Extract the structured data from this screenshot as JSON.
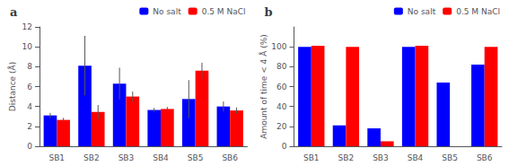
{
  "chart_data": [
    {
      "type": "bar",
      "title": "a",
      "categories": [
        "SB1",
        "SB2",
        "SB3",
        "SB4",
        "SB5",
        "SB6"
      ],
      "series": [
        {
          "name": "No salt",
          "color": "#0000FF",
          "values": [
            3.1,
            8.1,
            6.3,
            3.65,
            4.75,
            4.0
          ],
          "errors": [
            0.25,
            3.0,
            1.6,
            0.2,
            1.9,
            0.5
          ]
        },
        {
          "name": "0.5 M NaCl",
          "color": "#FF0000",
          "values": [
            2.65,
            3.45,
            5.0,
            3.75,
            7.6,
            3.6
          ],
          "errors": [
            0.2,
            0.7,
            0.5,
            0.2,
            0.8,
            0.3
          ]
        }
      ],
      "ylabel": "Distance (Å)",
      "ylim": [
        0,
        12
      ],
      "yticks": [
        0,
        2,
        4,
        6,
        8,
        10,
        12
      ],
      "grid": false,
      "legend": "upper right"
    },
    {
      "type": "bar",
      "title": "b",
      "categories": [
        "SB1",
        "SB2",
        "SB3",
        "SB4",
        "SB5",
        "SB6"
      ],
      "series": [
        {
          "name": "No salt",
          "color": "#0000FF",
          "values": [
            100,
            21,
            18,
            100,
            64,
            82
          ]
        },
        {
          "name": "0.5 M NaCl",
          "color": "#FF0000",
          "values": [
            101,
            100,
            5,
            101,
            0,
            100
          ]
        }
      ],
      "ylabel": "Amount of time < 4 Å (%)",
      "ylim": [
        0,
        120
      ],
      "yticks": [
        0,
        20,
        40,
        60,
        80,
        100
      ],
      "grid": false,
      "legend": "upper right"
    }
  ]
}
